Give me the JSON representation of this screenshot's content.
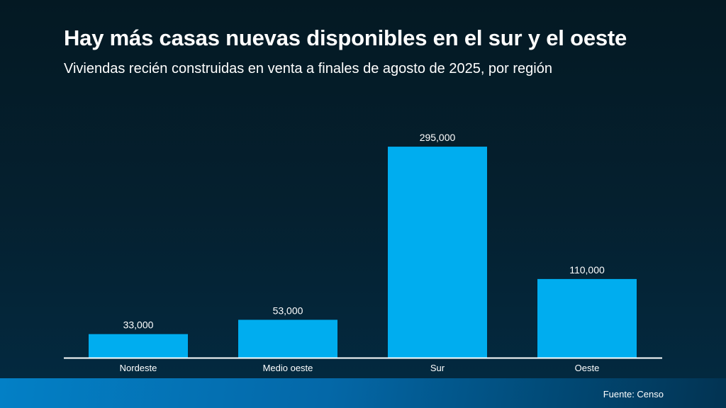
{
  "title": "Hay más casas nuevas disponibles en el sur y el oeste",
  "subtitle": "Viviendas recién construidas en venta a finales de agosto de 2025, por región",
  "source": "Fuente: Censo",
  "colors": {
    "bar": "#00adef",
    "axis": "#ffffff"
  },
  "chart_data": {
    "type": "bar",
    "title": "Hay más casas nuevas disponibles en el sur y el oeste",
    "subtitle": "Viviendas recién construidas en venta a finales de agosto de 2025, por región",
    "categories": [
      "Nordeste",
      "Medio oeste",
      "Sur",
      "Oeste"
    ],
    "values": [
      33000,
      53000,
      295000,
      110000
    ],
    "labels": [
      "33,000",
      "53,000",
      "295,000",
      "110,000"
    ],
    "xlabel": "",
    "ylabel": "",
    "ylim": [
      0,
      300000
    ],
    "grid": false
  }
}
